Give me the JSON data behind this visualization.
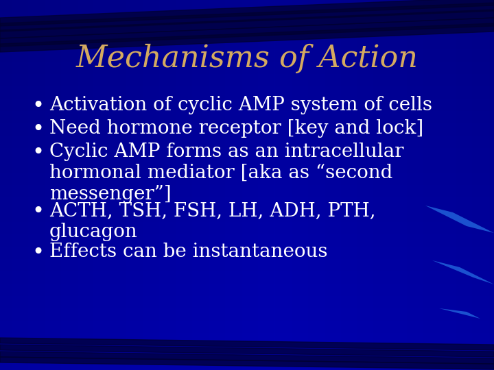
{
  "title": "Mechanisms of Action",
  "title_color": "#D4AA60",
  "title_fontsize": 32,
  "title_font": "serif",
  "title_fontstyle": "italic",
  "bg_color": "#000099",
  "bullet_color": "#FFFFFF",
  "bullet_fontsize": 20,
  "bullet_font": "serif",
  "bullets": [
    "Activation of cyclic AMP system of cells",
    "Need hormone receptor [key and lock]",
    "Cyclic AMP forms as an intracellular\nhormonal mediator [aka as “second\nmessenger”]",
    "ACTH, TSH, FSH, LH, ADH, PTH,\nglucagon",
    "Effects can be instantaneous"
  ],
  "bullet_line_counts": [
    1,
    1,
    3,
    2,
    1
  ],
  "figsize": [
    7.2,
    5.4
  ],
  "dpi": 100,
  "stripe_color": "#000055",
  "accent_color": "#1155CC"
}
